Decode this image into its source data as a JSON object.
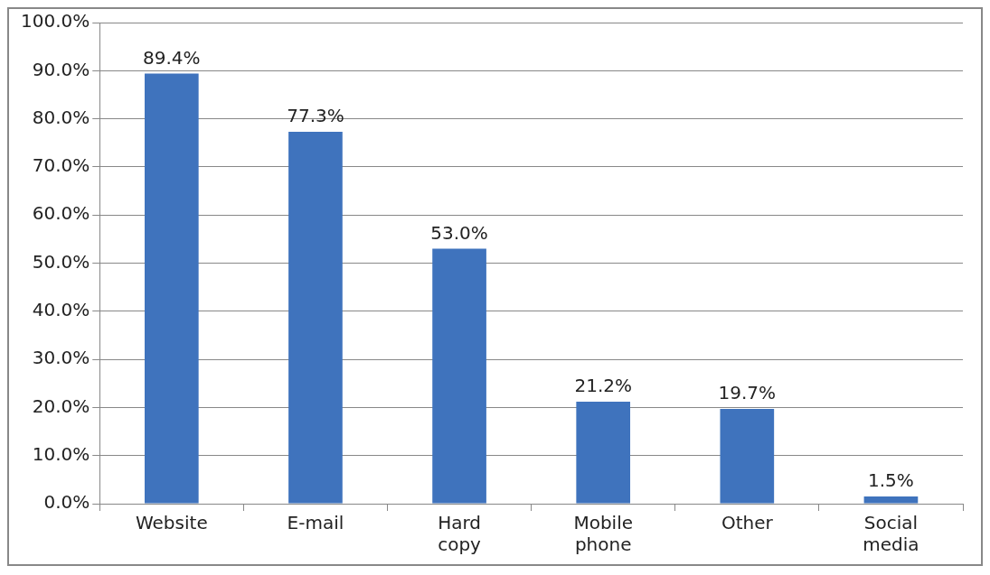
{
  "chart_data": {
    "type": "bar",
    "categories": [
      "Website",
      "E-mail",
      "Hard copy",
      "Mobile phone",
      "Other",
      "Social media"
    ],
    "values": [
      89.4,
      77.3,
      53.0,
      21.2,
      19.7,
      1.5
    ],
    "value_labels": [
      "89.4%",
      "77.3%",
      "53.0%",
      "21.2%",
      "19.7%",
      "1.5%"
    ],
    "color": "#3f73bd",
    "ylim": [
      0,
      100
    ],
    "yticks": [
      {
        "value": 0,
        "label": "0.0%"
      },
      {
        "value": 10,
        "label": "10.0%"
      },
      {
        "value": 20,
        "label": "20.0%"
      },
      {
        "value": 30,
        "label": "30.0%"
      },
      {
        "value": 40,
        "label": "40.0%"
      },
      {
        "value": 50,
        "label": "50.0%"
      },
      {
        "value": 60,
        "label": "60.0%"
      },
      {
        "value": 70,
        "label": "70.0%"
      },
      {
        "value": 80,
        "label": "80.0%"
      },
      {
        "value": 90,
        "label": "90.0%"
      },
      {
        "value": 100,
        "label": "100.0%"
      }
    ],
    "grid": "y"
  }
}
